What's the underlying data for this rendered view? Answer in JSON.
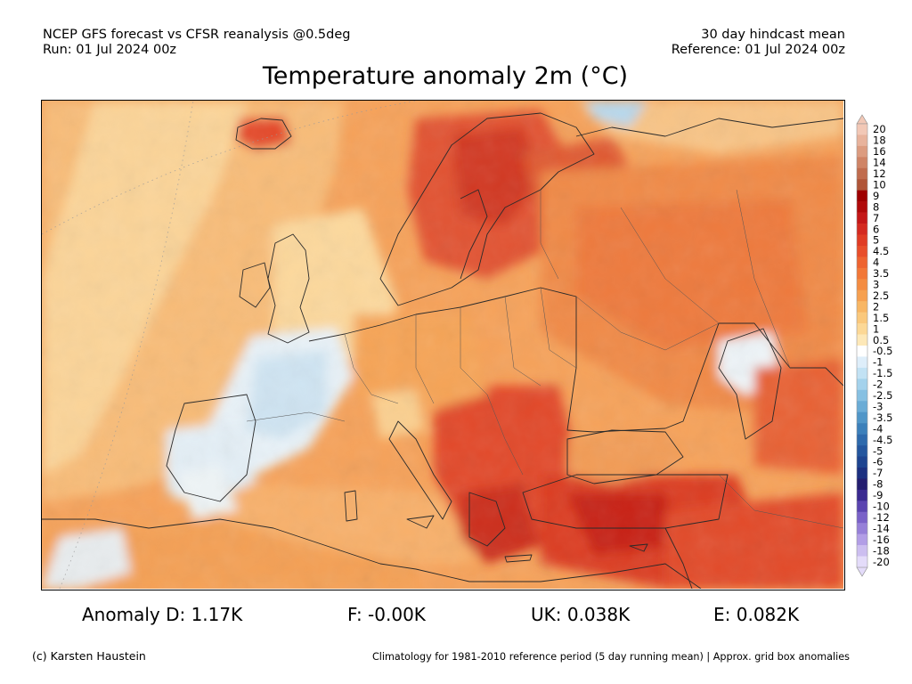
{
  "header": {
    "model_line": "NCEP GFS forecast vs CFSR reanalysis @0.5deg",
    "run_line": "Run: 01 Jul 2024 00z",
    "mean_line": "30 day hindcast mean",
    "reference_line": "Reference: 01 Jul 2024 00z"
  },
  "title": "Temperature anomaly 2m (°C)",
  "colorbar": {
    "labels": [
      "20",
      "18",
      "16",
      "14",
      "12",
      "10",
      "9",
      "8",
      "7",
      "6",
      "5",
      "4.5",
      "4",
      "3.5",
      "3",
      "2.5",
      "2",
      "1.5",
      "1",
      "0.5",
      "-0.5",
      "-1",
      "-1.5",
      "-2",
      "-2.5",
      "-3",
      "-3.5",
      "-4",
      "-4.5",
      "-5",
      "-6",
      "-7",
      "-8",
      "-9",
      "-10",
      "-12",
      "-14",
      "-16",
      "-18",
      "-20"
    ],
    "colors": [
      "#f2c8b6",
      "#e8b39c",
      "#dc9c80",
      "#cf8466",
      "#c06c4e",
      "#b05538",
      "#9e0000",
      "#b00a0a",
      "#c41818",
      "#d42a20",
      "#e03c24",
      "#e84e2a",
      "#ee6430",
      "#f27838",
      "#f48c42",
      "#f6a050",
      "#f8b664",
      "#fac87c",
      "#fcd896",
      "#fde8b8",
      "#ffffff",
      "#deeefa",
      "#c2e2f4",
      "#a4d2ec",
      "#86c0e2",
      "#6aacd6",
      "#5096c8",
      "#3c80ba",
      "#2e6aac",
      "#24569e",
      "#1e4490",
      "#1c3080",
      "#241e70",
      "#3a2a90",
      "#5a44b0",
      "#7a62c8",
      "#9680d8",
      "#b29ee6",
      "#ccbef0",
      "#e4dcfa"
    ]
  },
  "stats": {
    "anomaly_d": "Anomaly D: 1.17K",
    "f": "F: -0.00K",
    "uk": "UK: 0.038K",
    "e": "E: 0.082K"
  },
  "footer": {
    "credit": "(c) Karsten Haustein",
    "note": "Climatology for 1981-2010 reference period (5 day running mean) | Approx. grid box anomalies"
  }
}
